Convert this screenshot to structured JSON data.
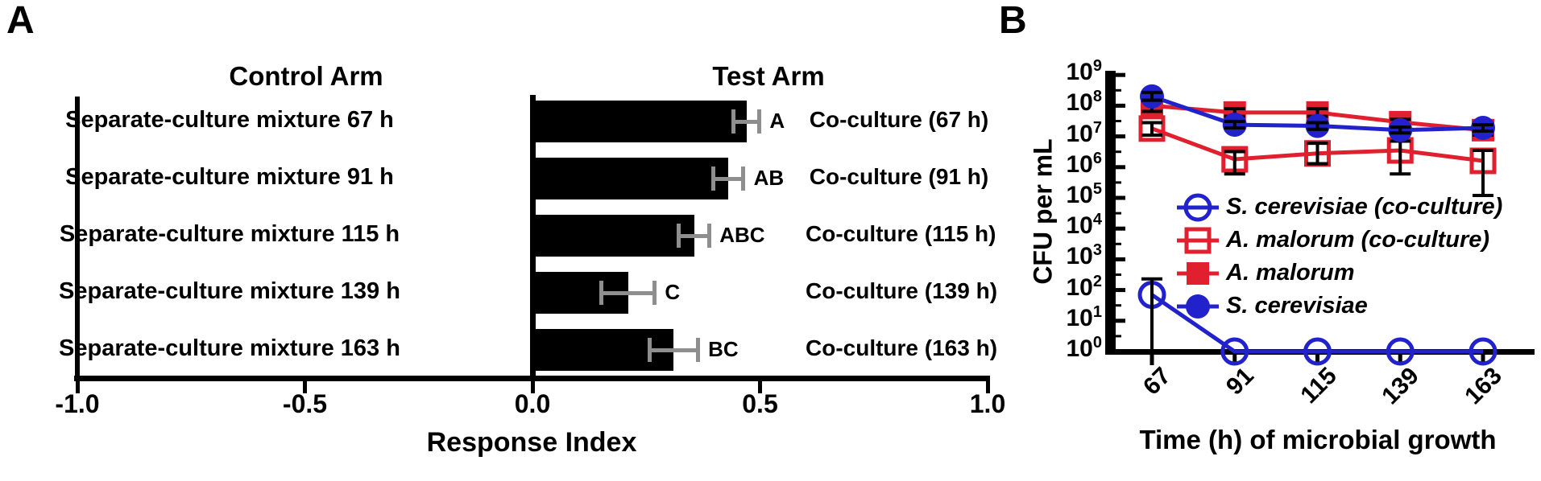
{
  "figure": {
    "panel_a_label": "A",
    "panel_b_label": "B"
  },
  "chart_data": [
    {
      "panel": "A",
      "type": "bar",
      "orientation": "horizontal",
      "title_left": "Control Arm",
      "title_right": "Test Arm",
      "xlabel": "Response Index",
      "xlim": [
        -1.0,
        1.0
      ],
      "x_ticks": [
        "-1.0",
        "-0.5",
        "0.0",
        "0.5",
        "1.0"
      ],
      "bar_color": "#000000",
      "error_color": "#8e8e8e",
      "rows": [
        {
          "control_label": "Separate-culture mixture 67 h",
          "test_label": "Co-culture (67 h)",
          "value": 0.47,
          "error": 0.028,
          "sig": "A"
        },
        {
          "control_label": "Separate-culture mixture 91 h",
          "test_label": "Co-culture (91 h)",
          "value": 0.43,
          "error": 0.033,
          "sig": "AB"
        },
        {
          "control_label": "Separate-culture mixture 115 h",
          "test_label": "Co-culture (115 h)",
          "value": 0.355,
          "error": 0.033,
          "sig": "ABC"
        },
        {
          "control_label": "Separate-culture mixture 139 h",
          "test_label": "Co-culture (139 h)",
          "value": 0.21,
          "error": 0.058,
          "sig": "C"
        },
        {
          "control_label": "Separate-culture mixture 163 h",
          "test_label": "Co-culture (163 h)",
          "value": 0.31,
          "error": 0.053,
          "sig": "BC"
        }
      ]
    },
    {
      "panel": "B",
      "type": "line",
      "xlabel": "Time (h) of microbial growth",
      "ylabel": "CFU per mL",
      "x_categories": [
        "67",
        "91",
        "115",
        "139",
        "163"
      ],
      "y_scale": "log10",
      "ylim_exponents": [
        0,
        9
      ],
      "legend_position": "inside-right",
      "colors": {
        "blue": "#2222CC",
        "red": "#E0202E",
        "error": "#000000"
      },
      "series": [
        {
          "name": "S. cerevisiae (co-culture)",
          "marker": "open-circle",
          "color": "#2222CC",
          "values": [
            70,
            1,
            1,
            1,
            1
          ],
          "err_low": [
            1,
            1,
            1,
            1,
            1
          ],
          "err_high": [
            230,
            1,
            1,
            1,
            1
          ]
        },
        {
          "name": "A. malorum (co-culture)",
          "marker": "open-square",
          "color": "#E0202E",
          "values": [
            18000000.0,
            1800000.0,
            2800000.0,
            3500000.0,
            1600000.0
          ],
          "err_low": [
            11000000.0,
            600000.0,
            1300000.0,
            600000.0,
            120000.0
          ],
          "err_high": [
            28000000.0,
            3200000.0,
            6000000.0,
            7000000.0,
            3500000.0
          ]
        },
        {
          "name": "A. malorum",
          "marker": "filled-square",
          "color": "#E0202E",
          "values": [
            100000000.0,
            60000000.0,
            60000000.0,
            29000000.0,
            16000000.0
          ],
          "err_low": [
            65000000.0,
            45000000.0,
            45000000.0,
            23000000.0,
            11000000.0
          ],
          "err_high": [
            150000000.0,
            80000000.0,
            80000000.0,
            36000000.0,
            24000000.0
          ]
        },
        {
          "name": "S. cerevisiae",
          "marker": "filled-circle",
          "color": "#2222CC",
          "values": [
            200000000.0,
            24000000.0,
            22000000.0,
            16000000.0,
            19000000.0
          ],
          "err_low": [
            150000000.0,
            19000000.0,
            17000000.0,
            13000000.0,
            15000000.0
          ],
          "err_high": [
            270000000.0,
            31000000.0,
            28000000.0,
            20000000.0,
            24000000.0
          ]
        }
      ]
    }
  ]
}
